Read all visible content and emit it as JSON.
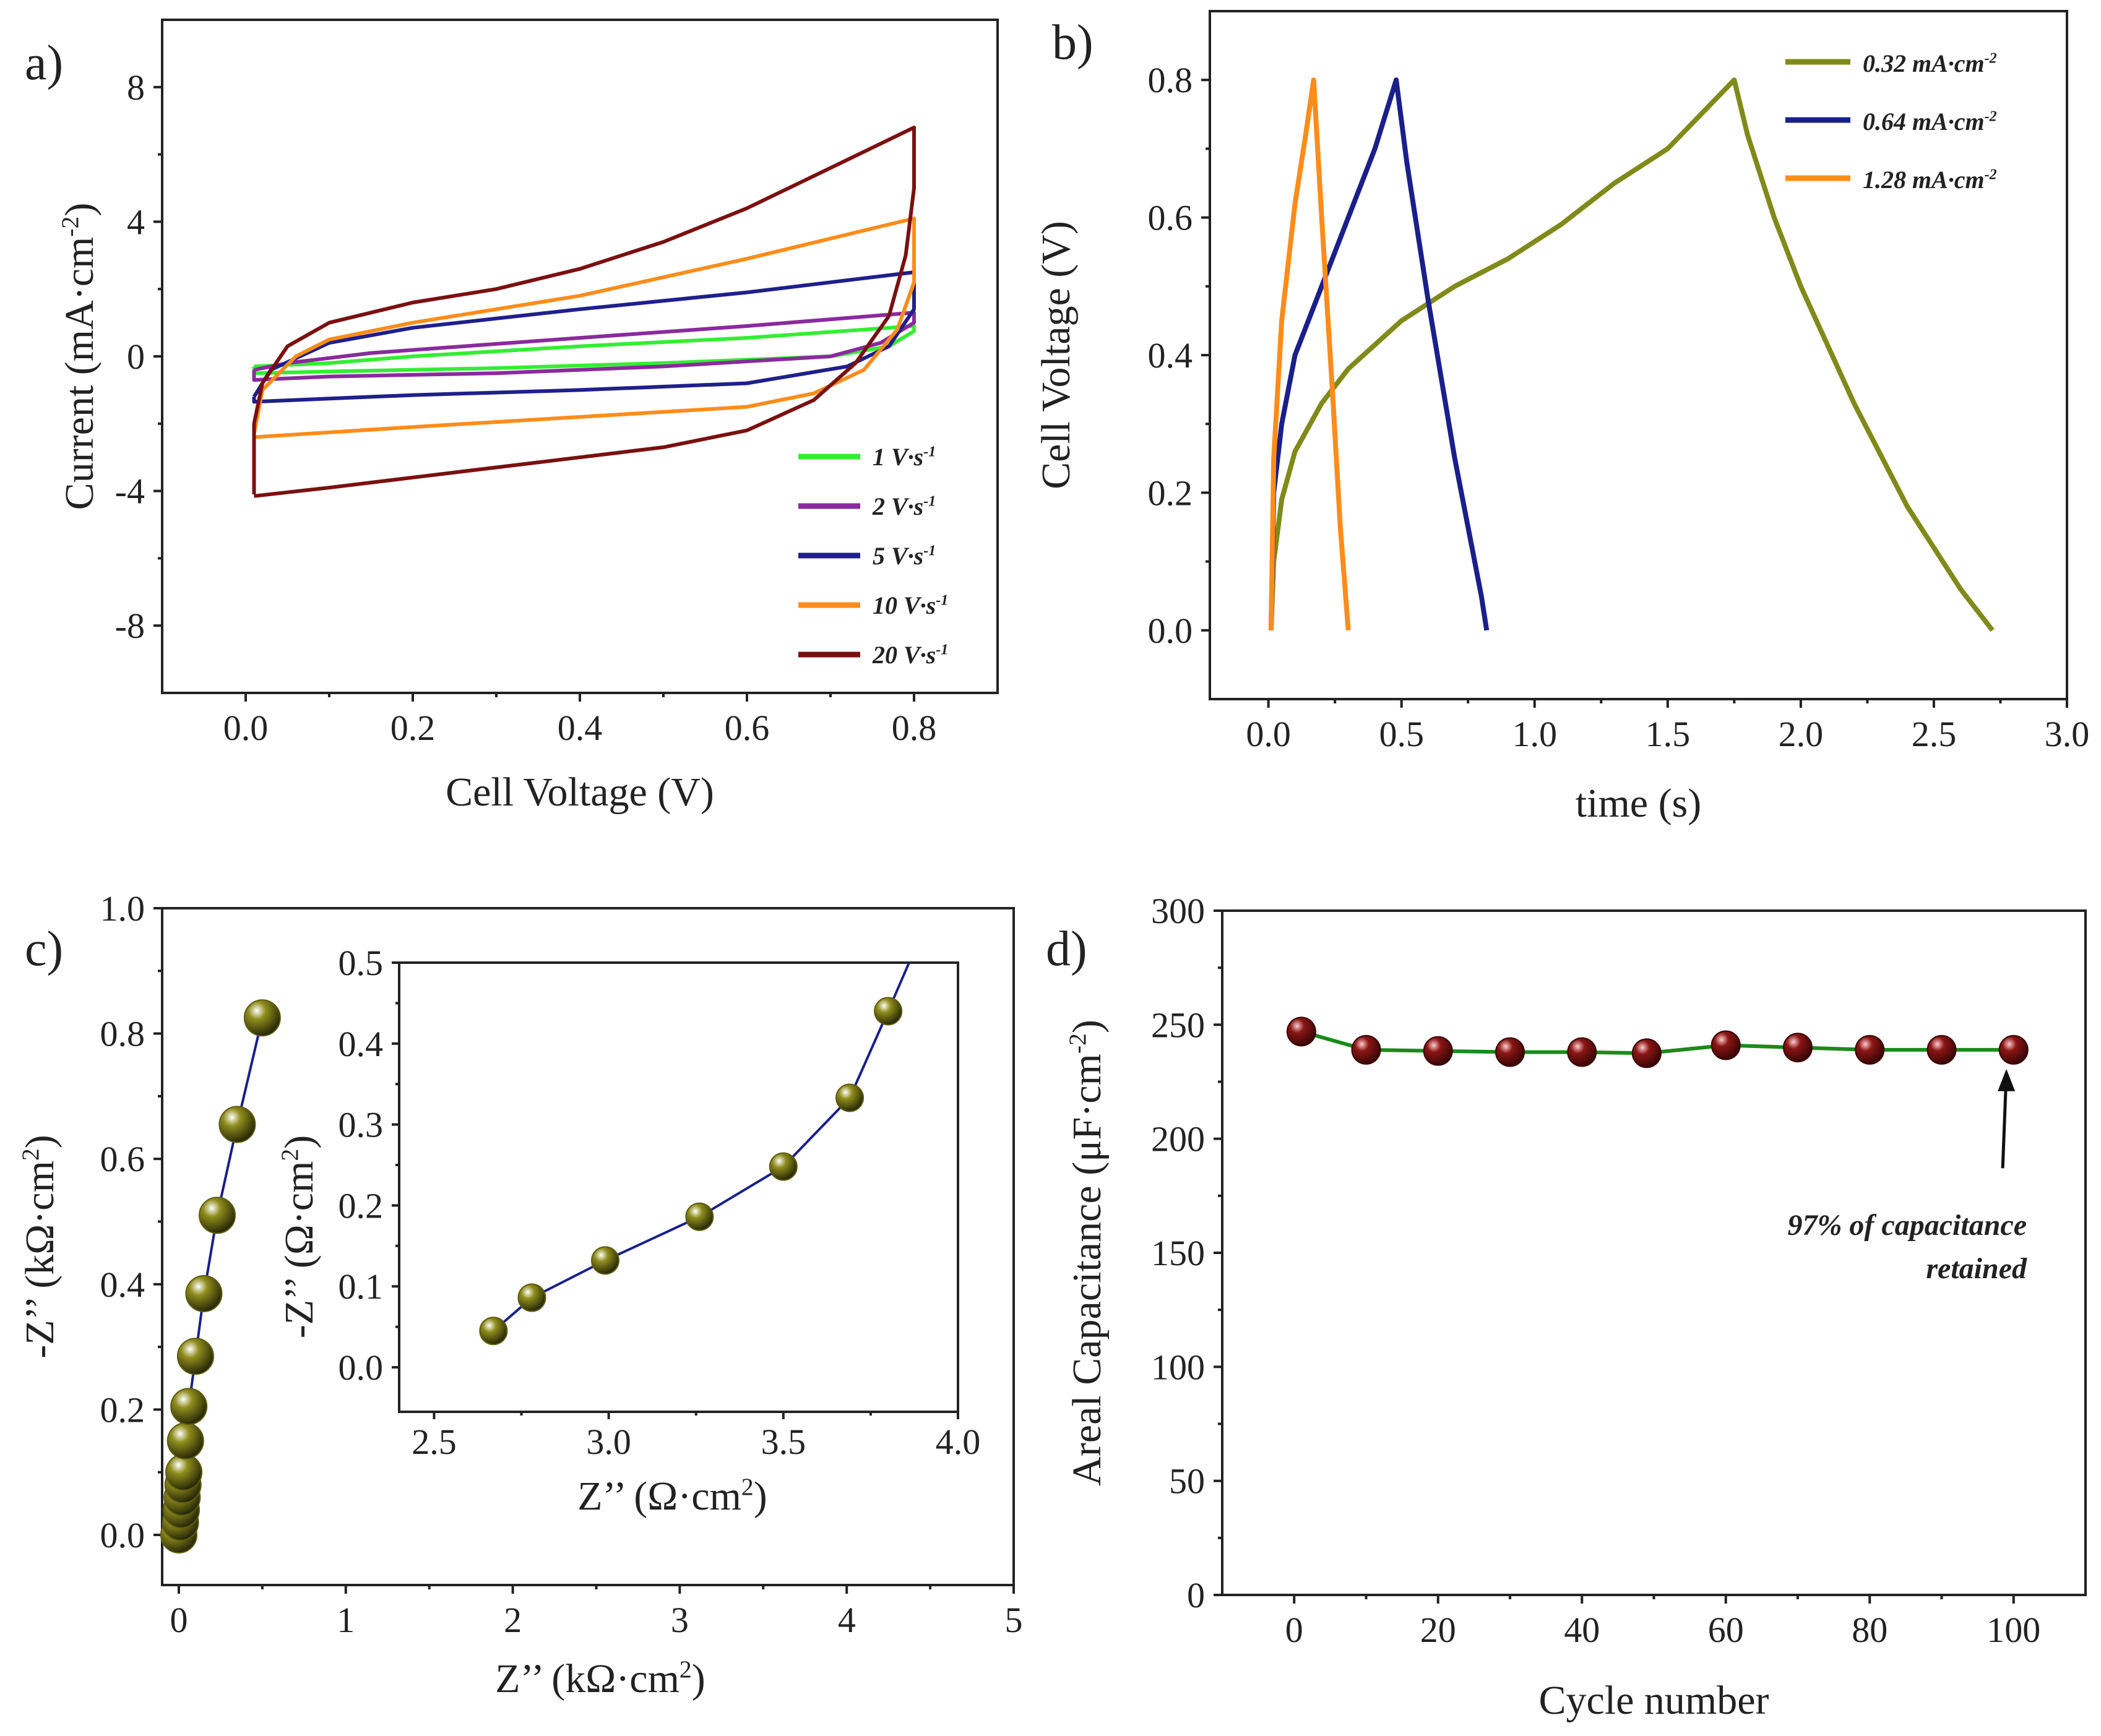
{
  "figure_labels": {
    "a": "a)",
    "b": "b)",
    "c": "c)",
    "d": "d)"
  },
  "colors": {
    "cv_1": "#33ee33",
    "cv_2": "#8a2a9e",
    "cv_5": "#1f1f8c",
    "cv_10": "#ff8c1a",
    "cv_20": "#7a1010",
    "gcd_032": "#7f8a1a",
    "gcd_064": "#1a1f8a",
    "gcd_128": "#ff8c1a",
    "eis_marker": "#8f8d1c",
    "eis_line": "#1a1f8a",
    "cyc_marker": "#8b1515",
    "cyc_line": "#1a8a1a"
  },
  "chart_data": [
    {
      "id": "a",
      "type": "line",
      "xlabel": "Cell Voltage (V)",
      "ylabel": "Current (mA·cm",
      "ylabel_sup": "-2",
      "ylabel_end": ")",
      "xlim": [
        -0.1,
        0.9
      ],
      "ylim": [
        -10,
        10
      ],
      "xticks": [
        "0.0",
        "0.2",
        "0.4",
        "0.6",
        "0.8"
      ],
      "yticks": [
        "-8",
        "-4",
        "0",
        "4",
        "8"
      ],
      "legend": [
        {
          "text": "1 V·s",
          "sup": "-1",
          "color_key": "cv_1"
        },
        {
          "text": "2 V·s",
          "sup": "-1",
          "color_key": "cv_2"
        },
        {
          "text": "5 V·s",
          "sup": "-1",
          "color_key": "cv_5"
        },
        {
          "text": "10 V·s",
          "sup": "-1",
          "color_key": "cv_10"
        },
        {
          "text": "20 V·s",
          "sup": "-1",
          "color_key": "cv_20"
        }
      ],
      "series": [
        {
          "name": "1 V·s-1",
          "color_key": "cv_1",
          "points": [
            [
              0.01,
              -0.3
            ],
            [
              0.1,
              -0.2
            ],
            [
              0.2,
              0.0
            ],
            [
              0.4,
              0.3
            ],
            [
              0.6,
              0.55
            ],
            [
              0.8,
              0.9
            ],
            [
              0.8,
              0.75
            ],
            [
              0.77,
              0.3
            ],
            [
              0.7,
              0.0
            ],
            [
              0.5,
              -0.2
            ],
            [
              0.3,
              -0.35
            ],
            [
              0.1,
              -0.45
            ],
            [
              0.01,
              -0.5
            ],
            [
              0.01,
              -0.3
            ]
          ]
        },
        {
          "name": "2 V·s-1",
          "color_key": "cv_2",
          "points": [
            [
              0.01,
              -0.4
            ],
            [
              0.05,
              -0.2
            ],
            [
              0.15,
              0.1
            ],
            [
              0.4,
              0.55
            ],
            [
              0.6,
              0.9
            ],
            [
              0.8,
              1.3
            ],
            [
              0.8,
              1.0
            ],
            [
              0.76,
              0.4
            ],
            [
              0.7,
              0.0
            ],
            [
              0.5,
              -0.3
            ],
            [
              0.3,
              -0.5
            ],
            [
              0.1,
              -0.6
            ],
            [
              0.01,
              -0.7
            ],
            [
              0.01,
              -0.4
            ]
          ]
        },
        {
          "name": "5 V·s-1",
          "color_key": "cv_5",
          "points": [
            [
              0.01,
              -1.2
            ],
            [
              0.03,
              -0.4
            ],
            [
              0.1,
              0.4
            ],
            [
              0.2,
              0.85
            ],
            [
              0.4,
              1.4
            ],
            [
              0.6,
              1.9
            ],
            [
              0.8,
              2.5
            ],
            [
              0.8,
              1.4
            ],
            [
              0.77,
              0.3
            ],
            [
              0.72,
              -0.3
            ],
            [
              0.6,
              -0.8
            ],
            [
              0.4,
              -1.0
            ],
            [
              0.2,
              -1.15
            ],
            [
              0.01,
              -1.35
            ],
            [
              0.01,
              -1.2
            ]
          ]
        },
        {
          "name": "10 V·s-1",
          "color_key": "cv_10",
          "points": [
            [
              0.01,
              -2.3
            ],
            [
              0.02,
              -1.0
            ],
            [
              0.06,
              0.0
            ],
            [
              0.1,
              0.5
            ],
            [
              0.2,
              1.0
            ],
            [
              0.4,
              1.8
            ],
            [
              0.6,
              2.9
            ],
            [
              0.8,
              4.1
            ],
            [
              0.8,
              2.2
            ],
            [
              0.78,
              0.8
            ],
            [
              0.74,
              -0.4
            ],
            [
              0.68,
              -1.1
            ],
            [
              0.6,
              -1.5
            ],
            [
              0.4,
              -1.8
            ],
            [
              0.2,
              -2.1
            ],
            [
              0.01,
              -2.4
            ],
            [
              0.01,
              -2.3
            ]
          ]
        },
        {
          "name": "20 V·s-1",
          "color_key": "cv_20",
          "points": [
            [
              0.01,
              -4.1
            ],
            [
              0.01,
              -2.0
            ],
            [
              0.02,
              -0.8
            ],
            [
              0.05,
              0.3
            ],
            [
              0.1,
              1.0
            ],
            [
              0.2,
              1.6
            ],
            [
              0.3,
              2.0
            ],
            [
              0.4,
              2.6
            ],
            [
              0.5,
              3.4
            ],
            [
              0.6,
              4.4
            ],
            [
              0.7,
              5.6
            ],
            [
              0.8,
              6.8
            ],
            [
              0.8,
              5.0
            ],
            [
              0.79,
              3.0
            ],
            [
              0.77,
              1.2
            ],
            [
              0.73,
              -0.2
            ],
            [
              0.68,
              -1.3
            ],
            [
              0.6,
              -2.2
            ],
            [
              0.5,
              -2.7
            ],
            [
              0.4,
              -3.0
            ],
            [
              0.3,
              -3.3
            ],
            [
              0.2,
              -3.6
            ],
            [
              0.1,
              -3.9
            ],
            [
              0.01,
              -4.15
            ]
          ]
        }
      ]
    },
    {
      "id": "b",
      "type": "line",
      "xlabel": "time (s)",
      "ylabel": "Cell Voltage (V)",
      "xlim": [
        -0.22,
        3.0
      ],
      "ylim": [
        -0.1,
        0.9
      ],
      "xticks": [
        "0.0",
        "0.5",
        "1.0",
        "1.5",
        "2.0",
        "2.5",
        "3.0"
      ],
      "yticks": [
        "0.0",
        "0.2",
        "0.4",
        "0.6",
        "0.8"
      ],
      "legend": [
        {
          "text": "0.32 mA·cm",
          "sup": "-2",
          "color_key": "gcd_032"
        },
        {
          "text": "0.64 mA·cm",
          "sup": "-2",
          "color_key": "gcd_064"
        },
        {
          "text": "1.28 mA·cm",
          "sup": "-2",
          "color_key": "gcd_128"
        }
      ],
      "series": [
        {
          "name": "0.32 mA·cm-2",
          "color_key": "gcd_032",
          "points": [
            [
              0.01,
              0.0
            ],
            [
              0.02,
              0.1
            ],
            [
              0.05,
              0.19
            ],
            [
              0.1,
              0.26
            ],
            [
              0.2,
              0.33
            ],
            [
              0.3,
              0.38
            ],
            [
              0.5,
              0.45
            ],
            [
              0.7,
              0.5
            ],
            [
              0.9,
              0.54
            ],
            [
              1.1,
              0.59
            ],
            [
              1.3,
              0.65
            ],
            [
              1.5,
              0.7
            ],
            [
              1.75,
              0.8
            ],
            [
              1.8,
              0.72
            ],
            [
              1.9,
              0.6
            ],
            [
              2.0,
              0.5
            ],
            [
              2.2,
              0.33
            ],
            [
              2.4,
              0.18
            ],
            [
              2.6,
              0.06
            ],
            [
              2.72,
              0.0
            ]
          ]
        },
        {
          "name": "0.64 mA·cm-2",
          "color_key": "gcd_064",
          "points": [
            [
              0.01,
              0.0
            ],
            [
              0.02,
              0.2
            ],
            [
              0.05,
              0.3
            ],
            [
              0.1,
              0.4
            ],
            [
              0.2,
              0.5
            ],
            [
              0.3,
              0.6
            ],
            [
              0.4,
              0.7
            ],
            [
              0.48,
              0.8
            ],
            [
              0.52,
              0.68
            ],
            [
              0.6,
              0.48
            ],
            [
              0.7,
              0.25
            ],
            [
              0.8,
              0.05
            ],
            [
              0.82,
              0.0
            ]
          ]
        },
        {
          "name": "1.28 mA·cm-2",
          "color_key": "gcd_128",
          "points": [
            [
              0.01,
              0.0
            ],
            [
              0.02,
              0.25
            ],
            [
              0.05,
              0.45
            ],
            [
              0.1,
              0.62
            ],
            [
              0.14,
              0.72
            ],
            [
              0.17,
              0.8
            ],
            [
              0.2,
              0.6
            ],
            [
              0.24,
              0.35
            ],
            [
              0.27,
              0.15
            ],
            [
              0.3,
              0.0
            ]
          ]
        }
      ]
    },
    {
      "id": "c",
      "type": "scatter",
      "xlabel": "Z’’ (kΩ·cm",
      "xlabel_sup": "2",
      "xlabel_end": ")",
      "ylabel": "-Z’’ (kΩ·cm",
      "ylabel_sup": "2",
      "ylabel_end": ")",
      "xlim": [
        -0.1,
        5.0
      ],
      "ylim": [
        -0.08,
        1.0
      ],
      "xticks": [
        "0",
        "1",
        "2",
        "3",
        "4",
        "5"
      ],
      "yticks": [
        "0.0",
        "0.2",
        "0.4",
        "0.6",
        "0.8",
        "1.0"
      ],
      "points": [
        [
          0.0,
          0.0
        ],
        [
          0.01,
          0.02
        ],
        [
          0.015,
          0.04
        ],
        [
          0.02,
          0.06
        ],
        [
          0.025,
          0.08
        ],
        [
          0.03,
          0.1
        ],
        [
          0.04,
          0.15
        ],
        [
          0.06,
          0.205
        ],
        [
          0.1,
          0.285
        ],
        [
          0.15,
          0.385
        ],
        [
          0.23,
          0.51
        ],
        [
          0.35,
          0.655
        ],
        [
          0.5,
          0.825
        ]
      ]
    },
    {
      "id": "c_inset",
      "type": "scatter",
      "xlabel": "Z’’ (Ω·cm",
      "xlabel_sup": "2",
      "xlabel_end": ")",
      "ylabel": "-Z’’ (Ω·cm",
      "ylabel_sup": "2",
      "ylabel_end": ")",
      "xlim": [
        2.4,
        4.0
      ],
      "ylim": [
        -0.055,
        0.5
      ],
      "xticks": [
        "2.5",
        "3.0",
        "3.5",
        "4.0"
      ],
      "yticks": [
        "0.0",
        "0.1",
        "0.2",
        "0.3",
        "0.4",
        "0.5"
      ],
      "points": [
        [
          2.67,
          0.045
        ],
        [
          2.78,
          0.086
        ],
        [
          2.99,
          0.132
        ],
        [
          3.26,
          0.186
        ],
        [
          3.5,
          0.248
        ],
        [
          3.69,
          0.333
        ],
        [
          3.8,
          0.44
        ]
      ]
    },
    {
      "id": "d",
      "type": "line",
      "xlabel": "Cycle number",
      "ylabel": "Areal Capacitance (μF·cm",
      "ylabel_sup": "-2",
      "ylabel_end": ")",
      "xlim": [
        -10,
        110
      ],
      "ylim": [
        0,
        300
      ],
      "xticks": [
        "0",
        "20",
        "40",
        "60",
        "80",
        "100"
      ],
      "yticks": [
        "0",
        "50",
        "100",
        "150",
        "200",
        "250",
        "300"
      ],
      "x": [
        1,
        10,
        20,
        30,
        40,
        49,
        60,
        70,
        80,
        90,
        100
      ],
      "values": [
        247,
        239,
        238.5,
        238,
        238,
        237.5,
        241,
        240,
        239,
        239,
        239
      ],
      "annotation": [
        "97% of capacitance",
        "retained"
      ]
    }
  ]
}
